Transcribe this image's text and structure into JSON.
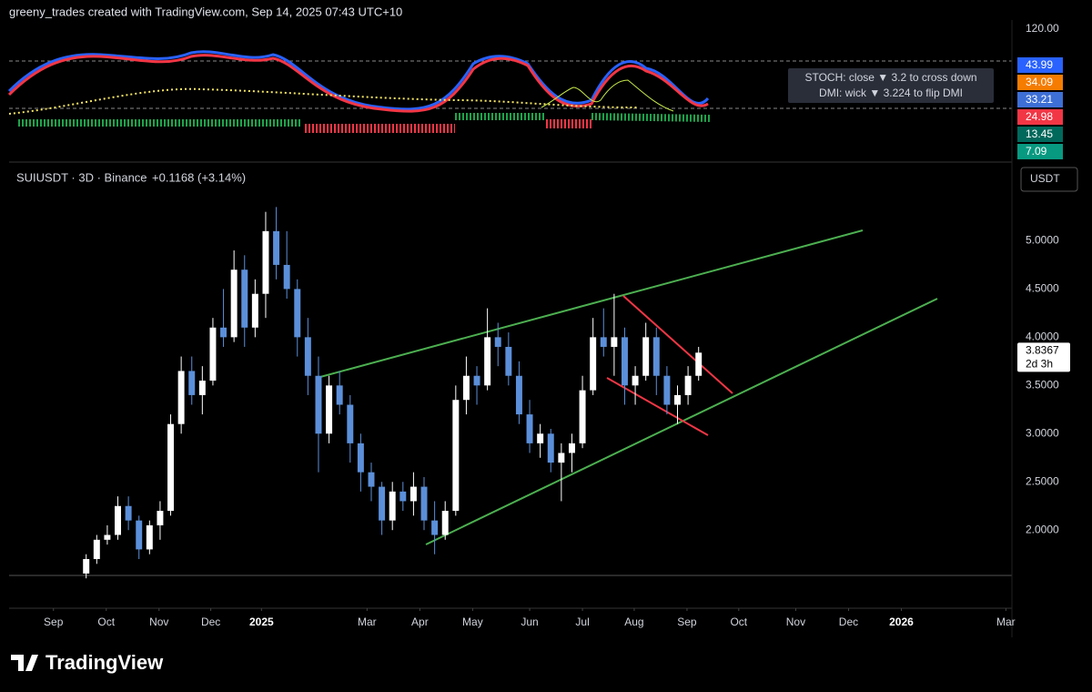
{
  "header": "greeny_trades created with TradingView.com, Sep 14, 2025 07:43 UTC+10",
  "indicator": {
    "scale_top": "120.00",
    "note_lines": [
      "STOCH: close ▼ 3.2 to cross down",
      "DMI: wick ▼ 3.224 to flip DMI"
    ],
    "badges": [
      {
        "text": "43.99",
        "color": "#2962ff"
      },
      {
        "text": "34.09",
        "color": "#f57c00"
      },
      {
        "text": "33.21",
        "color": "#3d6fd6"
      },
      {
        "text": "24.98",
        "color": "#f23645"
      },
      {
        "text": "13.45",
        "color": "#00695c"
      },
      {
        "text": "7.09",
        "color": "#089981"
      }
    ]
  },
  "chart_data": {
    "type": "candlestick",
    "title": "SUIUSDT · 3D · Binance",
    "change": "+0.1168 (+3.14%)",
    "currency_button": "USDT",
    "last_price_label": "3.8367",
    "countdown_label": "2d 3h",
    "up_color": "#ffffff",
    "down_color": "#5b8fd9",
    "grid": false,
    "open": [
      1.55,
      1.7,
      1.9,
      1.95,
      2.25,
      2.1,
      1.8,
      2.05,
      2.2,
      3.1,
      3.65,
      3.4,
      3.55,
      4.1,
      4.0,
      4.7,
      4.1,
      4.45,
      5.1,
      4.75,
      4.5,
      4.0,
      3.6,
      3.0,
      3.5,
      3.3,
      2.9,
      2.6,
      2.45,
      2.1,
      2.4,
      2.3,
      2.45,
      2.1,
      1.95,
      2.2,
      3.35,
      3.6,
      3.5,
      4.0,
      3.9,
      3.6,
      3.2,
      2.9,
      3.0,
      2.7,
      2.8,
      2.9,
      3.45,
      4.0,
      3.9,
      4.0,
      3.5,
      3.6,
      4.0,
      3.6,
      3.3,
      3.4,
      3.6
    ],
    "high": [
      1.75,
      1.95,
      2.05,
      2.35,
      2.35,
      2.15,
      2.1,
      2.3,
      3.2,
      3.8,
      3.8,
      3.7,
      4.2,
      4.5,
      4.9,
      4.85,
      4.6,
      5.3,
      5.35,
      5.1,
      4.6,
      4.2,
      3.8,
      3.6,
      3.65,
      3.4,
      3.0,
      2.7,
      2.5,
      2.5,
      2.5,
      2.6,
      2.55,
      2.3,
      2.3,
      3.5,
      3.8,
      3.7,
      4.3,
      4.15,
      4.05,
      3.75,
      3.35,
      3.1,
      3.05,
      2.9,
      3.0,
      3.6,
      4.2,
      4.3,
      4.45,
      4.1,
      3.7,
      4.15,
      4.1,
      3.7,
      3.5,
      3.7,
      3.9
    ],
    "low": [
      1.5,
      1.65,
      1.85,
      1.9,
      2.0,
      1.7,
      1.75,
      1.9,
      2.15,
      3.0,
      3.3,
      3.2,
      3.5,
      3.9,
      3.95,
      3.9,
      4.0,
      4.2,
      4.6,
      4.4,
      3.8,
      3.4,
      2.6,
      2.9,
      3.2,
      2.7,
      2.4,
      2.3,
      1.95,
      2.0,
      2.2,
      2.15,
      2.0,
      1.75,
      1.9,
      2.15,
      3.2,
      3.3,
      3.45,
      3.7,
      3.5,
      3.1,
      2.8,
      2.75,
      2.6,
      2.3,
      2.6,
      2.85,
      3.4,
      3.8,
      3.6,
      3.3,
      3.3,
      3.55,
      3.4,
      3.2,
      3.1,
      3.3,
      3.55
    ],
    "close": [
      1.7,
      1.9,
      1.95,
      2.25,
      2.1,
      1.8,
      2.05,
      2.2,
      3.1,
      3.65,
      3.4,
      3.55,
      4.1,
      4.0,
      4.7,
      4.1,
      4.45,
      5.1,
      4.75,
      4.5,
      4.0,
      3.6,
      3.0,
      3.5,
      3.3,
      2.9,
      2.6,
      2.45,
      2.1,
      2.4,
      2.3,
      2.45,
      2.1,
      1.95,
      2.2,
      3.35,
      3.6,
      3.5,
      4.0,
      3.9,
      3.6,
      3.2,
      2.9,
      3.0,
      2.7,
      2.8,
      2.9,
      3.45,
      4.0,
      3.9,
      4.0,
      3.5,
      3.6,
      4.0,
      3.6,
      3.3,
      3.4,
      3.6,
      3.84
    ],
    "ylim": [
      1.53,
      5.75
    ],
    "yticks": [
      {
        "value": 2.0,
        "label": "2.0000"
      },
      {
        "value": 2.5,
        "label": "2.5000"
      },
      {
        "value": 3.0,
        "label": "3.0000"
      },
      {
        "value": 3.5,
        "label": "3.5000"
      },
      {
        "value": 4.0,
        "label": "4.0000"
      },
      {
        "value": 4.5,
        "label": "4.5000"
      },
      {
        "value": 5.0,
        "label": "5.0000"
      }
    ],
    "xlim": [
      -7.3,
      87.5
    ],
    "xticks": [
      {
        "value": -3.1,
        "label": "Sep"
      },
      {
        "value": 1.9,
        "label": "Oct"
      },
      {
        "value": 6.9,
        "label": "Nov"
      },
      {
        "value": 11.8,
        "label": "Dec"
      },
      {
        "value": 16.6,
        "label": "2025"
      },
      {
        "value": 26.6,
        "label": "Mar"
      },
      {
        "value": 31.6,
        "label": "Apr"
      },
      {
        "value": 36.6,
        "label": "May"
      },
      {
        "value": 42.0,
        "label": "Jun"
      },
      {
        "value": 47.0,
        "label": "Jul"
      },
      {
        "value": 51.9,
        "label": "Aug"
      },
      {
        "value": 56.9,
        "label": "Sep"
      },
      {
        "value": 61.8,
        "label": "Oct"
      },
      {
        "value": 67.2,
        "label": "Nov"
      },
      {
        "value": 72.2,
        "label": "Dec"
      },
      {
        "value": 77.2,
        "label": "2026"
      },
      {
        "value": 87.1,
        "label": "Mar"
      }
    ]
  },
  "footer": "TradingView"
}
